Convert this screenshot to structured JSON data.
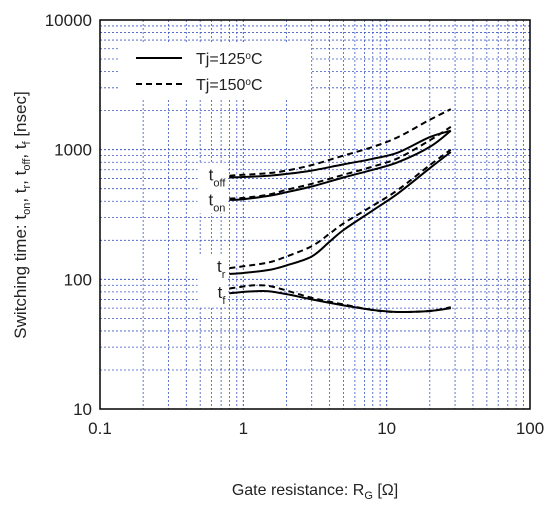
{
  "chart_data": {
    "type": "line",
    "xscale": "log",
    "yscale": "log",
    "xlim": [
      0.1,
      100
    ],
    "ylim": [
      10,
      10000
    ],
    "grid": true,
    "xticks": [
      "0.1",
      "1",
      "10",
      "100"
    ],
    "yticks": [
      "10",
      "100",
      "1000",
      "10000"
    ],
    "xlabel": {
      "main": "Gate resistance: R",
      "sub": "G",
      "unit": " [Ω]"
    },
    "ylabel": {
      "prefix": "Switching time:  t",
      "sub1": "on",
      "sep1": ",  t",
      "sub2": "r",
      "sep2": ",  t",
      "sub3": "off",
      "sep3": ",  t",
      "sub4": "f",
      "unit": "  [nsec]"
    },
    "legend": {
      "placement": "top-left",
      "entries": [
        {
          "label_main": "Tj=125",
          "label_sup": "o",
          "label_end": "C",
          "style": "solid"
        },
        {
          "label_main": "Tj=150",
          "label_sup": "o",
          "label_end": "C",
          "style": "dashed"
        }
      ]
    },
    "annotations": [
      {
        "main": "t",
        "sub": "off",
        "x": 0.8,
        "y": 620
      },
      {
        "main": "t",
        "sub": "on",
        "x": 0.8,
        "y": 400
      },
      {
        "main": "t",
        "sub": "r",
        "x": 0.8,
        "y": 122
      },
      {
        "main": "t",
        "sub": "f",
        "x": 0.8,
        "y": 77
      }
    ],
    "series": [
      {
        "group": "toff",
        "style": "solid",
        "x": [
          0.8,
          1,
          1.5,
          2,
          3,
          5,
          8,
          12,
          20,
          28
        ],
        "y": [
          610,
          615,
          630,
          650,
          690,
          770,
          850,
          950,
          1250,
          1400
        ]
      },
      {
        "group": "toff",
        "style": "dashed",
        "x": [
          0.8,
          1,
          1.5,
          2,
          3,
          5,
          8,
          12,
          20,
          28
        ],
        "y": [
          630,
          640,
          660,
          690,
          760,
          900,
          1050,
          1250,
          1700,
          2050
        ]
      },
      {
        "group": "ton",
        "style": "solid",
        "x": [
          0.8,
          1,
          1.5,
          2,
          3,
          5,
          8,
          12,
          20,
          28
        ],
        "y": [
          410,
          415,
          440,
          470,
          520,
          610,
          700,
          800,
          1050,
          1400
        ]
      },
      {
        "group": "ton",
        "style": "dashed",
        "x": [
          0.8,
          1,
          1.5,
          2,
          3,
          5,
          8,
          12,
          20,
          28
        ],
        "y": [
          420,
          425,
          450,
          490,
          545,
          640,
          740,
          860,
          1180,
          1500
        ]
      },
      {
        "group": "tr",
        "style": "solid",
        "x": [
          0.8,
          1,
          1.5,
          2,
          3,
          4,
          5,
          8,
          12,
          20,
          28
        ],
        "y": [
          110,
          112,
          118,
          128,
          150,
          195,
          240,
          340,
          460,
          720,
          960
        ]
      },
      {
        "group": "tr",
        "style": "dashed",
        "x": [
          0.8,
          1,
          1.5,
          2,
          3,
          4,
          5,
          8,
          12,
          20,
          28
        ],
        "y": [
          122,
          126,
          135,
          150,
          180,
          225,
          270,
          370,
          490,
          760,
          1000
        ]
      },
      {
        "group": "tf",
        "style": "solid",
        "x": [
          0.8,
          1,
          1.2,
          1.5,
          2,
          3,
          5,
          8,
          12,
          20,
          28
        ],
        "y": [
          78,
          80,
          81,
          81,
          77,
          70,
          63,
          58,
          56,
          57,
          60
        ]
      },
      {
        "group": "tf",
        "style": "dashed",
        "x": [
          0.8,
          1,
          1.2,
          1.5,
          2,
          3,
          5,
          8,
          12,
          20,
          28
        ],
        "y": [
          85,
          88,
          90,
          89,
          82,
          72,
          64,
          58,
          56,
          57,
          61
        ]
      }
    ]
  }
}
